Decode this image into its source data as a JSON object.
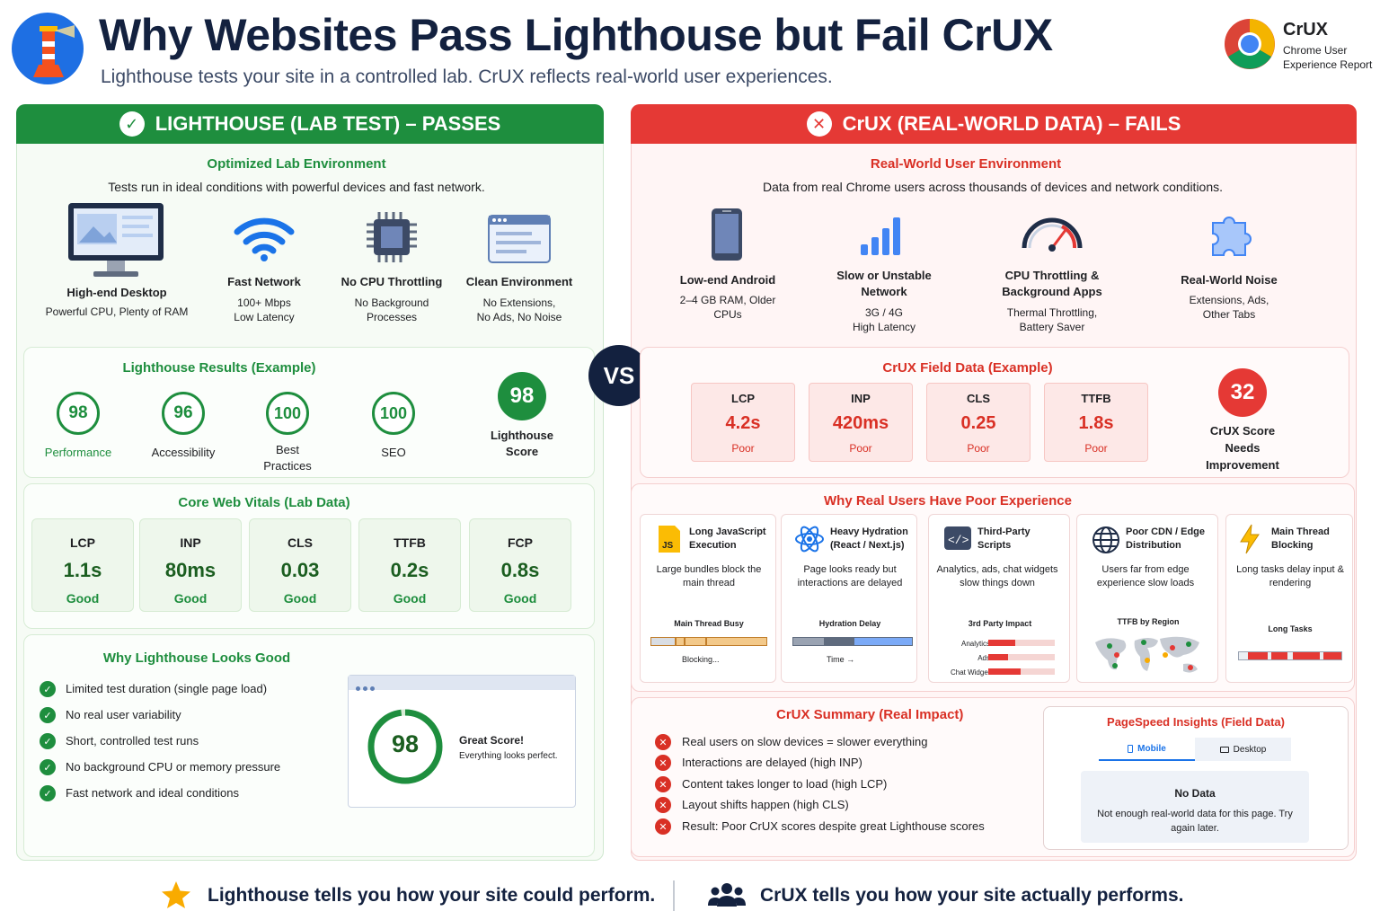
{
  "header": {
    "title": "Why Websites Pass Lighthouse but Fail CrUX",
    "subtitle": "Lighthouse tests your site in a controlled lab. CrUX reflects real-world user experiences.",
    "crux_name": "CrUX",
    "crux_desc": "Chrome User Experience Report"
  },
  "left": {
    "banner": "LIGHTHOUSE (LAB TEST) – PASSES",
    "env_title": "Optimized Lab Environment",
    "env_desc": "Tests run in ideal conditions with powerful devices and fast network.",
    "env_items": [
      {
        "title": "High-end Desktop",
        "desc": "Powerful CPU, Plenty of RAM",
        "icon": "desktop-icon"
      },
      {
        "title": "Fast Network",
        "desc": "100+ Mbps\nLow Latency",
        "icon": "wifi-icon"
      },
      {
        "title": "No CPU Throttling",
        "desc": "No Background\nProcesses",
        "icon": "cpu-icon"
      },
      {
        "title": "Clean Environment",
        "desc": "No Extensions,\nNo Ads, No Noise",
        "icon": "browser-window-icon"
      }
    ],
    "results_title": "Lighthouse Results (Example)",
    "results": [
      {
        "score": "98",
        "label": "Performance"
      },
      {
        "score": "96",
        "label": "Accessibility"
      },
      {
        "score": "100",
        "label": "Best Practices"
      },
      {
        "score": "100",
        "label": "SEO"
      }
    ],
    "overall_score": "98",
    "overall_label": "Lighthouse Score",
    "cwv_title": "Core Web Vitals (Lab Data)",
    "cwv": [
      {
        "name": "LCP",
        "value": "1.1s",
        "status": "Good"
      },
      {
        "name": "INP",
        "value": "80ms",
        "status": "Good"
      },
      {
        "name": "CLS",
        "value": "0.03",
        "status": "Good"
      },
      {
        "name": "TTFB",
        "value": "0.2s",
        "status": "Good"
      },
      {
        "name": "FCP",
        "value": "0.8s",
        "status": "Good"
      }
    ],
    "why_title": "Why Lighthouse Looks Good",
    "why_items": [
      "Limited test duration (single page load)",
      "No real user variability",
      "Short, controlled test runs",
      "No background CPU or memory pressure",
      "Fast network and ideal conditions"
    ],
    "mock_score": "98",
    "mock_title": "Great Score!",
    "mock_desc": "Everything looks perfect."
  },
  "vs": "VS",
  "right": {
    "banner": "CrUX (REAL-WORLD DATA) – FAILS",
    "env_title": "Real-World User Environment",
    "env_desc": "Data from real Chrome users across thousands of devices and network conditions.",
    "env_items": [
      {
        "title": "Low-end Android",
        "desc": "2–4 GB RAM, Older\nCPUs",
        "icon": "smartphone-icon"
      },
      {
        "title": "Slow or Unstable\nNetwork",
        "desc": "3G / 4G\nHigh Latency",
        "icon": "signal-bars-icon"
      },
      {
        "title": "CPU Throttling &\nBackground Apps",
        "desc": "Thermal Throttling,\nBattery Saver",
        "icon": "gauge-icon"
      },
      {
        "title": "Real-World Noise",
        "desc": "Extensions, Ads,\nOther Tabs",
        "icon": "puzzle-icon"
      }
    ],
    "field_title": "CrUX Field Data (Example)",
    "field": [
      {
        "name": "LCP",
        "value": "4.2s",
        "status": "Poor"
      },
      {
        "name": "INP",
        "value": "420ms",
        "status": "Poor"
      },
      {
        "name": "CLS",
        "value": "0.25",
        "status": "Poor"
      },
      {
        "name": "TTFB",
        "value": "1.8s",
        "status": "Poor"
      }
    ],
    "crux_score": "32",
    "crux_score_label": "CrUX Score\nNeeds\nImprovement",
    "reasons_title": "Why Real Users Have Poor Experience",
    "reasons": [
      {
        "title": "Long JavaScript Execution",
        "desc": "Large bundles block the main thread",
        "chart": "Main Thread Busy",
        "note": "Blocking...",
        "icon": "js-file-icon"
      },
      {
        "title": "Heavy Hydration (React / Next.js)",
        "desc": "Page looks ready but interactions are delayed",
        "chart": "Hydration Delay",
        "note": "Time →",
        "icon": "react-icon"
      },
      {
        "title": "Third-Party Scripts",
        "desc": "Analytics, ads, chat widgets slow things down",
        "chart": "3rd Party Impact",
        "bars": [
          "Analytics",
          "Ads",
          "Chat Widget"
        ],
        "icon": "code-icon"
      },
      {
        "title": "Poor CDN / Edge Distribution",
        "desc": "Users far from edge experience slow loads",
        "chart": "TTFB by Region",
        "icon": "globe-icon"
      },
      {
        "title": "Main Thread Blocking",
        "desc": "Long tasks delay input & rendering",
        "chart": "Long Tasks",
        "icon": "lightning-icon"
      }
    ],
    "summary_title": "CrUX Summary (Real Impact)",
    "summary_items": [
      "Real users on slow devices = slower everything",
      "Interactions are delayed (high INP)",
      "Content takes longer to load (high LCP)",
      "Layout shifts happen (high CLS)",
      "Result: Poor CrUX scores despite great Lighthouse scores"
    ],
    "psi_title": "PageSpeed Insights (Field Data)",
    "psi_tabs": [
      "Mobile",
      "Desktop"
    ],
    "psi_nodata_title": "No Data",
    "psi_nodata_desc": "Not enough real-world data for this page. Try again later."
  },
  "footer": {
    "left": "Lighthouse tells you how your site could perform.",
    "right": "CrUX tells you how your site actually performs."
  },
  "colors": {
    "green": "#1e8e3e",
    "red": "#e53935",
    "navy": "#13213f"
  }
}
